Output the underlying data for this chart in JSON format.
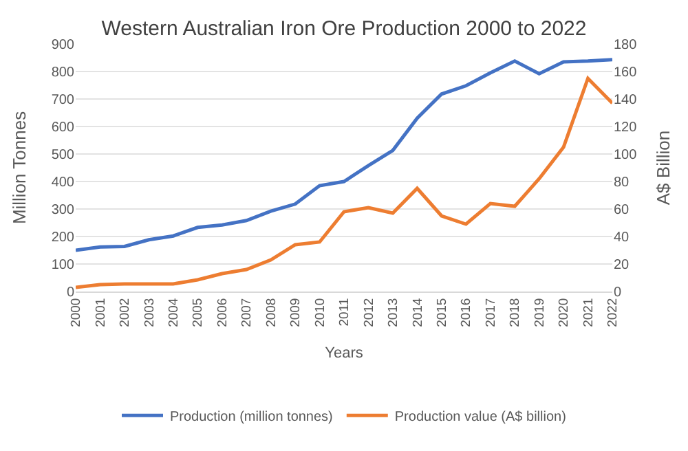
{
  "chart_data": {
    "type": "line",
    "title": "Western Australian Iron Ore Production 2000 to 2022",
    "xlabel": "Years",
    "ylabel": "Million Tonnes",
    "y2label": "A$ Billion",
    "categories": [
      "2000",
      "2001",
      "2002",
      "2003",
      "2004",
      "2005",
      "2006",
      "2007",
      "2008",
      "2009",
      "2010",
      "2011",
      "2012",
      "2013",
      "2014",
      "2015",
      "2016",
      "2017",
      "2018",
      "2019",
      "2020",
      "2021",
      "2022"
    ],
    "series": [
      {
        "name": "Production (million tonnes)",
        "color": "#4472c4",
        "values": [
          150,
          162,
          164,
          188,
          202,
          233,
          242,
          258,
          292,
          318,
          385,
          400,
          458,
          513,
          630,
          718,
          748,
          795,
          838,
          792,
          835,
          838,
          843
        ]
      },
      {
        "name": "Production value (A$ billion)",
        "color": "#ed7d31",
        "axis": "y2",
        "values": [
          3,
          5,
          5.5,
          5.5,
          5.5,
          8.5,
          13,
          16,
          23,
          34,
          36,
          58,
          61,
          57,
          75,
          55,
          49,
          64,
          62,
          82,
          105,
          155,
          137
        ]
      }
    ],
    "ylim": [
      0,
      900
    ],
    "yticks": [
      0,
      100,
      200,
      300,
      400,
      500,
      600,
      700,
      800,
      900
    ],
    "y2lim": [
      0,
      180
    ],
    "y2ticks": [
      0,
      20,
      40,
      60,
      80,
      100,
      120,
      140,
      160,
      180
    ],
    "grid": "y",
    "legend": "bottom",
    "marker": "none",
    "line_style": "solid"
  }
}
